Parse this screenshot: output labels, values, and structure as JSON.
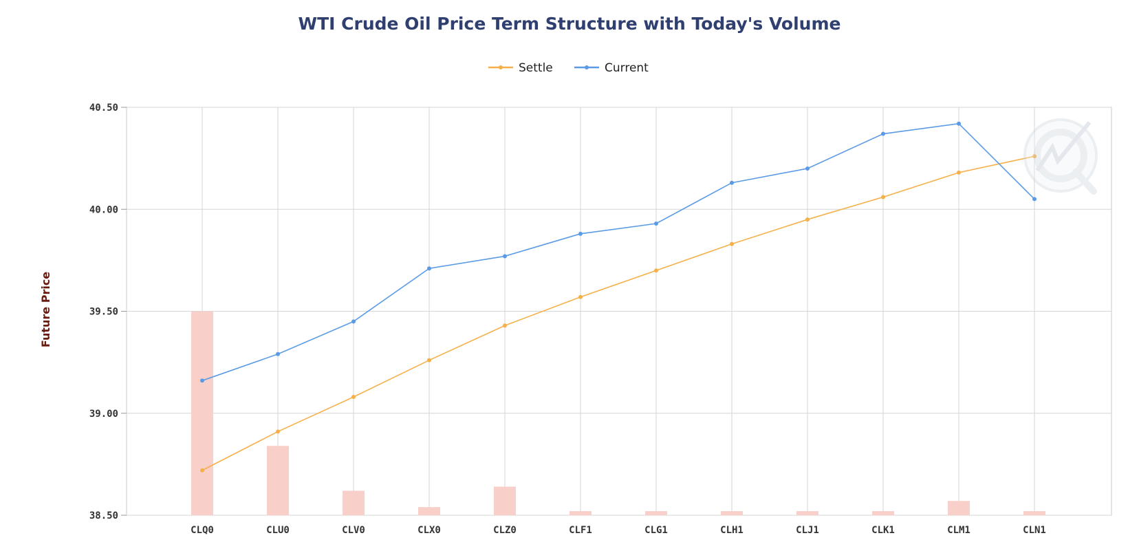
{
  "chart_data": {
    "type": "line",
    "title": "WTI Crude Oil Price Term Structure with Today's Volume",
    "xlabel": "",
    "ylabel": "Future Price",
    "categories": [
      "CLQ0",
      "CLU0",
      "CLV0",
      "CLX0",
      "CLZ0",
      "CLF1",
      "CLG1",
      "CLH1",
      "CLJ1",
      "CLK1",
      "CLM1",
      "CLN1"
    ],
    "y_ticks": [
      "40.50",
      "40.00",
      "39.50",
      "39.00",
      "38.50"
    ],
    "y_tick_values": [
      40.5,
      40.0,
      39.5,
      39.0,
      38.5
    ],
    "ylim": [
      38.5,
      40.5
    ],
    "grid": true,
    "legend_position": "top-center",
    "series": [
      {
        "name": "Settle",
        "color": "#f6b04a",
        "values": [
          38.72,
          38.91,
          39.08,
          39.26,
          39.43,
          39.57,
          39.7,
          39.83,
          39.95,
          40.06,
          40.18,
          40.26
        ]
      },
      {
        "name": "Current",
        "color": "#5b9be6",
        "values": [
          39.16,
          39.29,
          39.45,
          39.71,
          39.77,
          39.88,
          39.93,
          40.13,
          40.2,
          40.37,
          40.42,
          40.05
        ]
      }
    ],
    "volume": {
      "color": "#f8cfc9",
      "relative_values": [
        0.5,
        0.17,
        0.06,
        0.02,
        0.07,
        0.01,
        0.01,
        0.01,
        0.01,
        0.01,
        0.035,
        0.01
      ]
    }
  }
}
